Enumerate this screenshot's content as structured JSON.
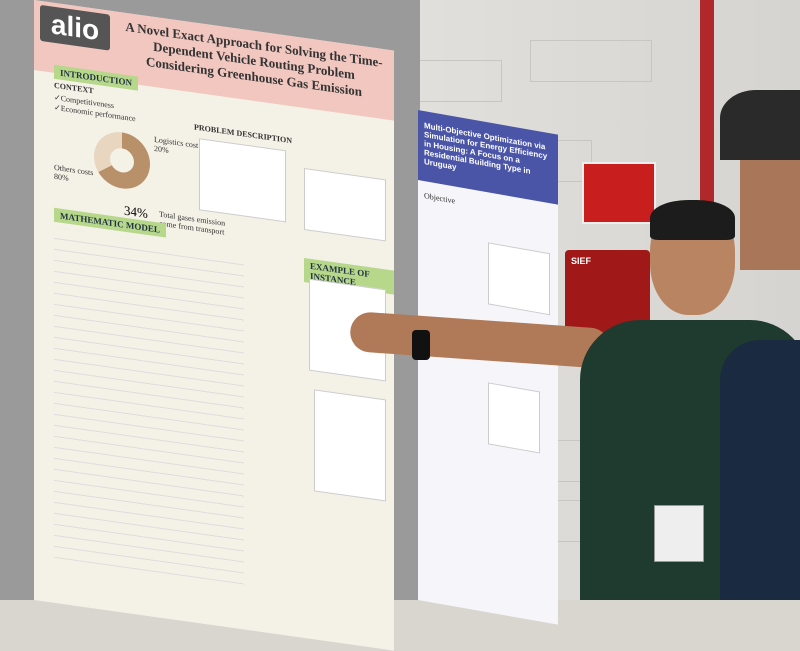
{
  "scene": "poster session",
  "poster_left": {
    "logo": "alio",
    "title": "A Novel Exact Approach for Solving the Time-Dependent Vehicle Routing Problem Considering Greenhouse Gas Emission",
    "sections": {
      "introduction": "INTRODUCTION",
      "context": "CONTEXT",
      "problem_description": "PROBLEM DESCRIPTION",
      "mathematic_model": "MATHEMATIC MODEL",
      "example_of_instance": "EXAMPLE OF INSTANCE"
    },
    "context_items": [
      "✓Competitiveness",
      "✓Economic performance"
    ],
    "donut_labels": {
      "logistics": "Logistics cost 20%",
      "others": "Others costs 80%",
      "percent": "34%",
      "ghg": "Total gases emission come from transport"
    },
    "colors": {
      "header": "#f1c7c0",
      "section": "#b7d88a"
    }
  },
  "poster_right": {
    "title": "Multi-Objective Optimization via Simulation for Energy Efficiency in Housing: A Focus on a Residential Building Type in Uruguay",
    "section": "Objective",
    "colors": {
      "header": "#4a55a8"
    }
  },
  "wall_sign": "SIEF"
}
